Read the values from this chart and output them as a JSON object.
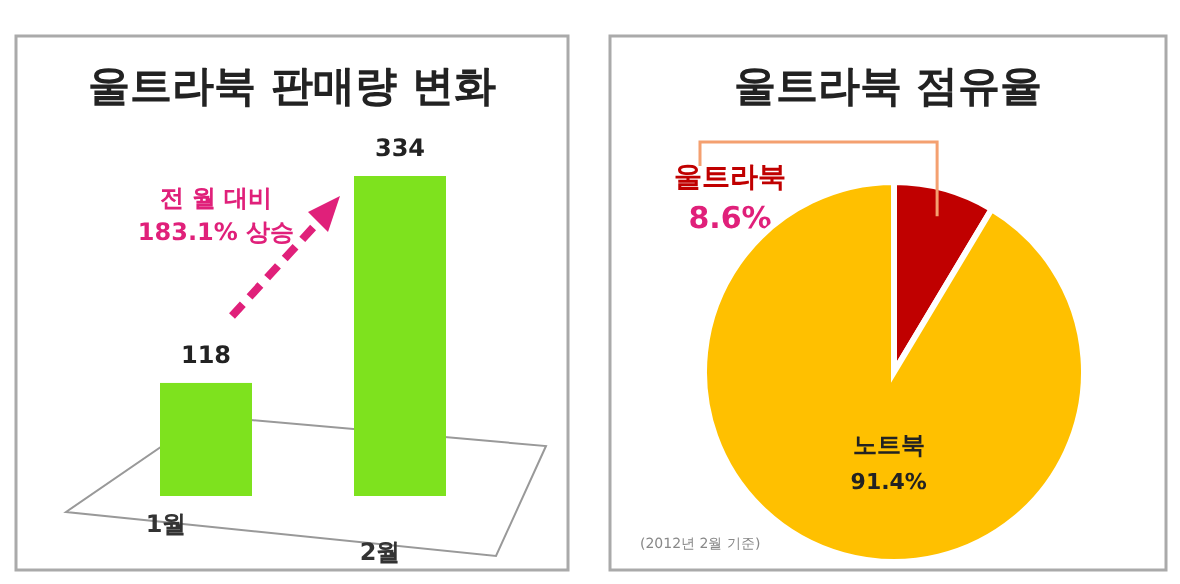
{
  "chart_data": [
    {
      "type": "bar",
      "title": "울트라북 판매량 변화",
      "categories": [
        "1월",
        "2월"
      ],
      "values": [
        118,
        334
      ],
      "color": "#7ee21e",
      "data_labels": true,
      "annotations": [
        "전 월 대비 183.1% 상승"
      ]
    },
    {
      "type": "pie",
      "title": "울트라북 점유율",
      "categories": [
        "울트라북",
        "노트북"
      ],
      "values": [
        8.6,
        91.4
      ],
      "colors": [
        "#c00000",
        "#ffc000"
      ],
      "value_labels": [
        "8.6%",
        "91.4%"
      ],
      "annotations": [
        "(2012년 2월 기준)"
      ]
    }
  ]
}
